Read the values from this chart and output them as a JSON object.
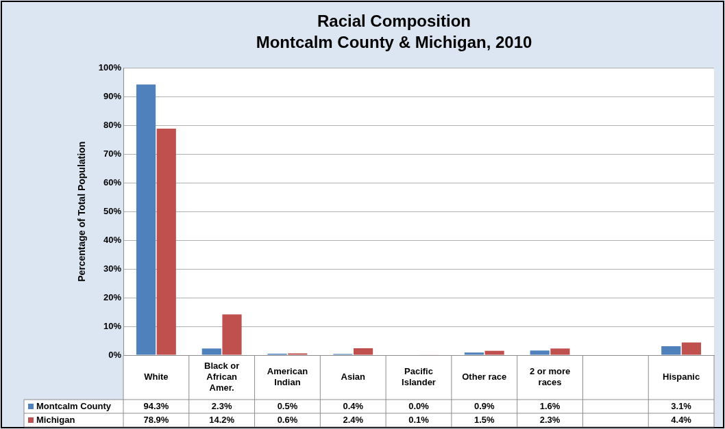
{
  "chart_data": {
    "type": "bar",
    "title": "Racial Composition",
    "subtitle": "Montcalm County & Michigan, 2010",
    "ylabel": "Percentage of Total Population",
    "categories": [
      "White",
      "Black or African Amer.",
      "American Indian",
      "Asian",
      "Pacific Islander",
      "Other race",
      "2 or more races",
      null,
      "Hispanic"
    ],
    "series": [
      {
        "name": "Montcalm County",
        "color": "#4f81bd",
        "values": [
          94.3,
          2.3,
          0.5,
          0.4,
          0.0,
          0.9,
          1.6,
          null,
          3.1
        ],
        "value_labels": [
          "94.3%",
          "2.3%",
          "0.5%",
          "0.4%",
          "0.0%",
          "0.9%",
          "1.6%",
          null,
          "3.1%"
        ]
      },
      {
        "name": "Michigan",
        "color": "#c0504d",
        "values": [
          78.9,
          14.2,
          0.6,
          2.4,
          0.1,
          1.5,
          2.3,
          null,
          4.4
        ],
        "value_labels": [
          "78.9%",
          "14.2%",
          "0.6%",
          "2.4%",
          "0.1%",
          "1.5%",
          "2.3%",
          null,
          "4.4%"
        ]
      }
    ],
    "ylim": [
      0,
      100
    ],
    "yticks": [
      {
        "value": 0,
        "label": "0%"
      },
      {
        "value": 10,
        "label": "10%"
      },
      {
        "value": 20,
        "label": "20%"
      },
      {
        "value": 30,
        "label": "30%"
      },
      {
        "value": 40,
        "label": "40%"
      },
      {
        "value": 50,
        "label": "50%"
      },
      {
        "value": 60,
        "label": "60%"
      },
      {
        "value": 70,
        "label": "70%"
      },
      {
        "value": 80,
        "label": "80%"
      },
      {
        "value": 90,
        "label": "90%"
      },
      {
        "value": 100,
        "label": "100%"
      }
    ],
    "grid": "y",
    "legend": "bottom left"
  }
}
